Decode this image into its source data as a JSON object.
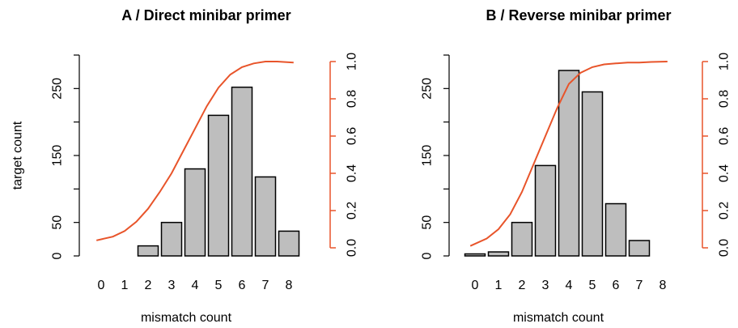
{
  "colors": {
    "bar_fill": "#bebebe",
    "bar_stroke": "#000000",
    "cumulative_line": "#e8542a",
    "axis": "#000000"
  },
  "chart_data": [
    {
      "type": "bar",
      "title": "A / Direct minibar primer",
      "xlabel": "mismatch count",
      "ylabel": "target count",
      "categories": [
        "0",
        "1",
        "2",
        "3",
        "4",
        "5",
        "6",
        "7",
        "8"
      ],
      "series": [
        {
          "values": [
            0,
            0,
            15,
            50,
            130,
            210,
            252,
            118,
            37
          ]
        }
      ],
      "ylim": [
        0,
        300
      ],
      "yticks": [
        "0",
        "50",
        "150",
        "250"
      ],
      "secondary_axis": {
        "ylim": [
          0,
          1
        ],
        "ticks": [
          "0.0",
          "0.2",
          "0.4",
          "0.6",
          "0.8",
          "1.0"
        ],
        "line": {
          "x": [
            -0.2,
            0.5,
            1,
            1.5,
            2,
            2.5,
            3,
            3.5,
            4,
            4.5,
            5,
            5.5,
            6,
            6.5,
            7,
            7.5,
            8.2
          ],
          "y": [
            0.04,
            0.06,
            0.09,
            0.14,
            0.21,
            0.3,
            0.4,
            0.52,
            0.64,
            0.76,
            0.86,
            0.93,
            0.97,
            0.99,
            1.0,
            1.0,
            0.995
          ]
        }
      },
      "grid": false,
      "legend": "none"
    },
    {
      "type": "bar",
      "title": "B / Reverse minibar primer",
      "xlabel": "mismatch count",
      "ylabel": "",
      "categories": [
        "0",
        "1",
        "2",
        "3",
        "4",
        "5",
        "6",
        "7",
        "8"
      ],
      "series": [
        {
          "values": [
            3,
            6,
            50,
            135,
            277,
            245,
            78,
            23,
            0
          ]
        }
      ],
      "ylim": [
        0,
        300
      ],
      "yticks": [
        "0",
        "50",
        "150",
        "250"
      ],
      "secondary_axis": {
        "ylim": [
          0,
          1
        ],
        "ticks": [
          "0.0",
          "0.2",
          "0.4",
          "0.6",
          "0.8",
          "1.0"
        ],
        "line": {
          "x": [
            -0.2,
            0.5,
            1,
            1.5,
            2,
            2.5,
            3,
            3.5,
            4,
            4.5,
            5,
            5.5,
            6,
            6.5,
            7,
            7.5,
            8.2
          ],
          "y": [
            0.01,
            0.05,
            0.1,
            0.18,
            0.3,
            0.45,
            0.6,
            0.75,
            0.88,
            0.94,
            0.97,
            0.985,
            0.99,
            0.995,
            0.995,
            0.998,
            1.0
          ]
        }
      },
      "grid": false,
      "legend": "none"
    }
  ]
}
